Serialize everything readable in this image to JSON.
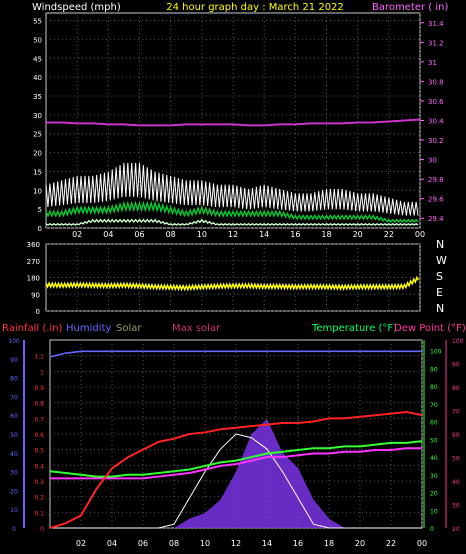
{
  "panel1": {
    "left_title": "Windspeed (mph)",
    "center_title": "24 hour graph day : March 21 2022",
    "right_title": "Barometer ( in)",
    "colors": {
      "title_left": "#ffffff",
      "title_center": "#ffff00",
      "title_right": "#ff66ff",
      "gust": "#ffffff",
      "avg": "#00cc33",
      "low": "#ccffcc",
      "baro": "#cc33cc"
    }
  },
  "panel2": {
    "compass": [
      "N",
      "W",
      "S",
      "E",
      "N"
    ],
    "colors": {
      "dir": "#ffff00",
      "labels": "#ffffff"
    }
  },
  "panel3": {
    "legend": {
      "rain": "Rainfall (.in)",
      "humidity": "Humidity",
      "solar": "Solar",
      "max_solar": "Max solar",
      "temperature": "Temperature (°F)",
      "dewpoint": "Dew Point (°F)"
    },
    "colors": {
      "rain": "#ff3333",
      "humidity": "#6666ff",
      "solar": "#9966ff",
      "max_solar": "#ffffff",
      "temperature": "#33ff33",
      "dewpoint": "#ff33ff",
      "temp_text": "#00ff66",
      "dew_text": "#ff3399"
    }
  },
  "chart_data": [
    {
      "type": "line",
      "title": "24 hour graph day : March 21 2022",
      "ylabel": "Windspeed (mph)",
      "y2label": "Barometer ( in)",
      "x_ticks": [
        "02",
        "04",
        "06",
        "08",
        "10",
        "12",
        "14",
        "16",
        "18",
        "20",
        "22",
        "00"
      ],
      "y_ticks": [
        "0",
        "5",
        "10",
        "15",
        "20",
        "25",
        "30",
        "35",
        "40",
        "45",
        "50",
        "55"
      ],
      "ylim": [
        0,
        57
      ],
      "y2_ticks": [
        "29.4",
        "29.6",
        "29.8",
        "30",
        "30.2",
        "30.4",
        "30.6",
        "30.8",
        "31",
        "31.2",
        "31.4"
      ],
      "y2lim": [
        29.3,
        31.5
      ],
      "x": [
        0,
        1,
        2,
        3,
        4,
        5,
        6,
        7,
        8,
        9,
        10,
        11,
        12,
        13,
        14,
        15,
        16,
        17,
        18,
        19,
        20,
        21,
        22,
        23,
        24
      ],
      "series": [
        {
          "name": "gust",
          "values": [
            10,
            11,
            12,
            12,
            13,
            15,
            15,
            13,
            12,
            11,
            11,
            10,
            10,
            9,
            10,
            9,
            8,
            8,
            9,
            9,
            8,
            8,
            7,
            6,
            6
          ]
        },
        {
          "name": "avg",
          "values": [
            4,
            4,
            5,
            5,
            5,
            6,
            6,
            6,
            5,
            4,
            5,
            4,
            4,
            4,
            4,
            4,
            3,
            3,
            3,
            3,
            3,
            3,
            2,
            2,
            2
          ]
        },
        {
          "name": "low",
          "values": [
            1,
            1,
            1,
            2,
            2,
            2,
            2,
            2,
            1,
            1,
            2,
            1,
            1,
            1,
            1,
            1,
            1,
            1,
            1,
            1,
            1,
            1,
            1,
            1,
            1
          ]
        },
        {
          "name": "barometer",
          "axis": "right",
          "values": [
            30.38,
            30.38,
            30.37,
            30.37,
            30.36,
            30.36,
            30.35,
            30.35,
            30.35,
            30.36,
            30.36,
            30.36,
            30.36,
            30.35,
            30.35,
            30.36,
            30.36,
            30.37,
            30.37,
            30.37,
            30.38,
            30.38,
            30.39,
            30.4,
            30.41
          ]
        }
      ]
    },
    {
      "type": "line",
      "ylabel": "direction",
      "y_ticks": [
        "0",
        "90",
        "180",
        "270",
        "360"
      ],
      "ylim": [
        0,
        360
      ],
      "x_ticks": [
        "02",
        "04",
        "06",
        "08",
        "10",
        "12",
        "14",
        "16",
        "18",
        "20",
        "22",
        "00"
      ],
      "x": [
        0,
        1,
        2,
        3,
        4,
        5,
        6,
        7,
        8,
        9,
        10,
        11,
        12,
        13,
        14,
        15,
        16,
        17,
        18,
        19,
        20,
        21,
        22,
        23,
        24
      ],
      "series": [
        {
          "name": "direction",
          "values": [
            140,
            138,
            140,
            138,
            136,
            138,
            135,
            130,
            128,
            125,
            130,
            133,
            135,
            135,
            132,
            132,
            130,
            131,
            130,
            128,
            130,
            130,
            130,
            132,
            180
          ]
        }
      ]
    },
    {
      "type": "area",
      "x_ticks": [
        "02",
        "04",
        "06",
        "08",
        "10",
        "12",
        "14",
        "16",
        "18",
        "20",
        "22",
        "00"
      ],
      "rain_ticks": [
        "0",
        "0.1",
        "0.2",
        "0.3",
        "0.4",
        "0.5",
        "0.6",
        "0.7",
        "0.8",
        "0.9",
        "1",
        "1.1"
      ],
      "rainlim": [
        0,
        1.2
      ],
      "pct_ticks": [
        "0",
        "10",
        "20",
        "30",
        "40",
        "50",
        "60",
        "70",
        "80",
        "90",
        "100"
      ],
      "pctlim": [
        0,
        100
      ],
      "temp_ticks": [
        "0",
        "10",
        "20",
        "30",
        "40",
        "50",
        "60",
        "70",
        "80",
        "90",
        "100"
      ],
      "templim": [
        0,
        106
      ],
      "dew_ticks": [
        "20",
        "30",
        "40",
        "50",
        "60",
        "70",
        "80",
        "90",
        "100"
      ],
      "dewlim": [
        20,
        100
      ],
      "x": [
        0,
        1,
        2,
        3,
        4,
        5,
        6,
        7,
        8,
        9,
        10,
        11,
        12,
        13,
        14,
        15,
        16,
        17,
        18,
        19,
        20,
        21,
        22,
        23,
        24
      ],
      "series": [
        {
          "name": "rain",
          "values": [
            0,
            0.03,
            0.08,
            0.25,
            0.38,
            0.45,
            0.5,
            0.55,
            0.57,
            0.6,
            0.61,
            0.63,
            0.64,
            0.65,
            0.66,
            0.67,
            0.67,
            0.68,
            0.7,
            0.7,
            0.71,
            0.72,
            0.73,
            0.74,
            0.72
          ]
        },
        {
          "name": "humidity",
          "values": [
            91,
            93,
            94,
            94,
            94,
            94,
            94,
            94,
            94,
            94,
            94,
            94,
            94,
            94,
            94,
            94,
            94,
            94,
            94,
            94,
            94,
            94,
            94,
            94,
            94
          ]
        },
        {
          "name": "temperature",
          "values": [
            32,
            31,
            30,
            29,
            29,
            30,
            30,
            31,
            32,
            33,
            35,
            37,
            38,
            40,
            42,
            43,
            44,
            45,
            45,
            46,
            46,
            47,
            48,
            48,
            49
          ]
        },
        {
          "name": "dew_point",
          "values": [
            28,
            28,
            28,
            28,
            28,
            28,
            28,
            29,
            30,
            31,
            33,
            35,
            36,
            38,
            40,
            40,
            41,
            42,
            42,
            43,
            43,
            44,
            44,
            45,
            45
          ]
        },
        {
          "name": "solar",
          "values": [
            0,
            0,
            0,
            0,
            0,
            0,
            0,
            0,
            0,
            5,
            8,
            15,
            30,
            50,
            58,
            40,
            32,
            15,
            5,
            0,
            0,
            0,
            0,
            0,
            0
          ]
        },
        {
          "name": "max_solar",
          "values": [
            0,
            0,
            0,
            0,
            0,
            0,
            0,
            0,
            2,
            16,
            30,
            42,
            50,
            48,
            42,
            30,
            16,
            2,
            0,
            0,
            0,
            0,
            0,
            0,
            0
          ]
        }
      ]
    }
  ]
}
